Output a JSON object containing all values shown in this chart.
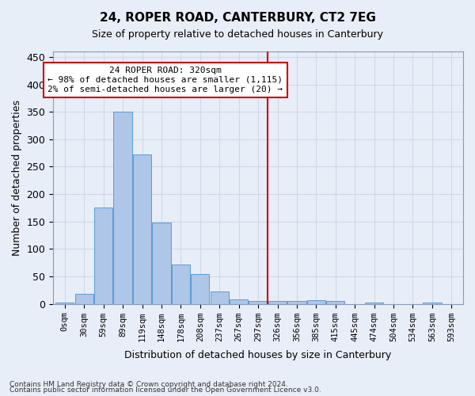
{
  "title": "24, ROPER ROAD, CANTERBURY, CT2 7EG",
  "subtitle": "Size of property relative to detached houses in Canterbury",
  "xlabel": "Distribution of detached houses by size in Canterbury",
  "ylabel": "Number of detached properties",
  "bar_labels": [
    "0sqm",
    "30sqm",
    "59sqm",
    "89sqm",
    "119sqm",
    "148sqm",
    "178sqm",
    "208sqm",
    "237sqm",
    "267sqm",
    "297sqm",
    "326sqm",
    "356sqm",
    "385sqm",
    "415sqm",
    "445sqm",
    "474sqm",
    "504sqm",
    "534sqm",
    "563sqm",
    "593sqm"
  ],
  "bar_values": [
    3,
    19,
    175,
    350,
    272,
    148,
    71,
    54,
    23,
    8,
    5,
    5,
    5,
    7,
    5,
    0,
    2,
    0,
    0,
    2,
    0
  ],
  "bar_color": "#aec6e8",
  "bar_edge_color": "#5b9bd5",
  "vline_color": "#cc0000",
  "annotation_text": "24 ROPER ROAD: 320sqm\n← 98% of detached houses are smaller (1,115)\n2% of semi-detached houses are larger (20) →",
  "annotation_box_color": "#ffffff",
  "annotation_box_edge": "#cc0000",
  "ylim": [
    0,
    460
  ],
  "yticks": [
    0,
    50,
    100,
    150,
    200,
    250,
    300,
    350,
    400,
    450
  ],
  "grid_color": "#d0d8e8",
  "bg_color": "#e8eef8",
  "footnote1": "Contains HM Land Registry data © Crown copyright and database right 2024.",
  "footnote2": "Contains public sector information licensed under the Open Government Licence v3.0."
}
